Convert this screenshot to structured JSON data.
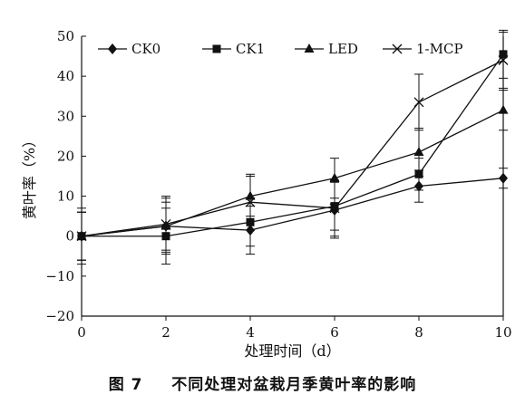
{
  "caption": {
    "figure_label": "图 7",
    "text": "不同处理对盆栽月季黄叶率的影响"
  },
  "chart_data": {
    "type": "line",
    "xlabel": "处理时间（d）",
    "ylabel": "黄叶率（%）",
    "xlim": [
      0,
      10
    ],
    "ylim": [
      -20,
      50
    ],
    "x_ticks": [
      "0",
      "2",
      "4",
      "6",
      "8",
      "10"
    ],
    "y_ticks": [
      "−20",
      "−10",
      "0",
      "10",
      "20",
      "30",
      "40",
      "50"
    ],
    "x": [
      0,
      2,
      4,
      6,
      8,
      10
    ],
    "grid": false,
    "legend_position": "top",
    "series": [
      {
        "name": "CK0",
        "marker": "diamond",
        "values": [
          0,
          2.5,
          1.5,
          6.5,
          12.5,
          14.5
        ],
        "errors": [
          7,
          7,
          6,
          7,
          4,
          2.5
        ]
      },
      {
        "name": "CK1",
        "marker": "square",
        "values": [
          0,
          0,
          3.5,
          7.5,
          15.5,
          45.5
        ],
        "errors": [
          6,
          7,
          6,
          6,
          4,
          6
        ]
      },
      {
        "name": "LED",
        "marker": "triangle",
        "values": [
          0,
          2.5,
          10,
          14.5,
          21,
          31.5
        ],
        "errors": [
          6,
          6,
          5,
          5,
          6,
          5
        ]
      },
      {
        "name": "1-MCP",
        "marker": "x",
        "values": [
          0,
          3,
          8.5,
          7,
          33.5,
          44
        ],
        "errors": [
          6,
          7,
          7,
          7,
          7,
          7
        ]
      }
    ]
  }
}
